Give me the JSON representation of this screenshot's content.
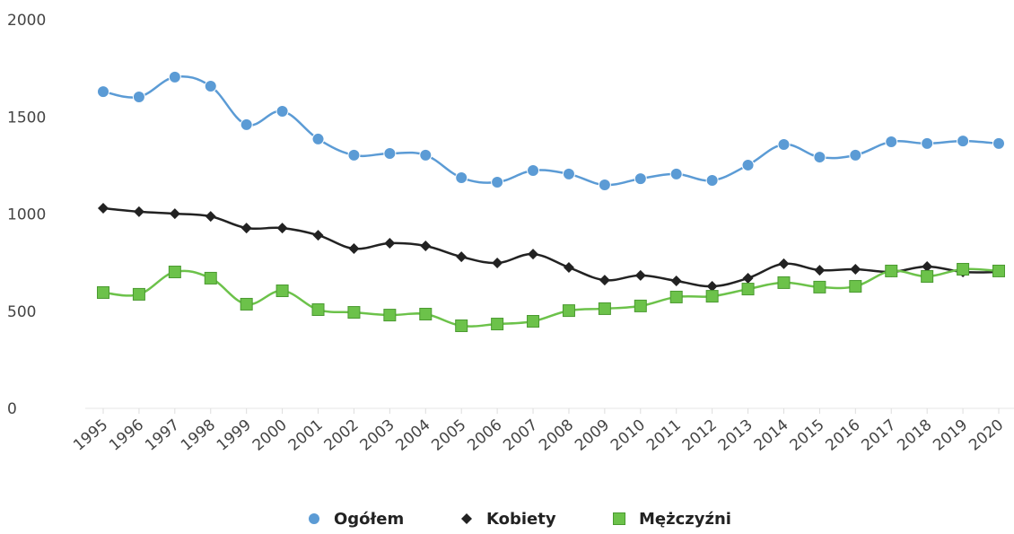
{
  "chart_data": {
    "type": "line",
    "categories": [
      "1995",
      "1996",
      "1997",
      "1998",
      "1999",
      "2000",
      "2001",
      "2002",
      "2003",
      "2004",
      "2005",
      "2006",
      "2007",
      "2008",
      "2009",
      "2010",
      "2011",
      "2012",
      "2013",
      "2014",
      "2015",
      "2016",
      "2017",
      "2018",
      "2019",
      "2020"
    ],
    "series": [
      {
        "name": "Ogółem",
        "color": "#5b9bd5",
        "marker": "circle",
        "values": [
          1630,
          1603,
          1705,
          1658,
          1460,
          1529,
          1386,
          1303,
          1312,
          1303,
          1187,
          1164,
          1224,
          1206,
          1150,
          1182,
          1206,
          1173,
          1252,
          1358,
          1293,
          1303,
          1372,
          1363,
          1376,
          1363
        ]
      },
      {
        "name": "Kobiety",
        "color": "#222222",
        "marker": "diamond",
        "values": [
          1030,
          1012,
          1002,
          988,
          928,
          928,
          891,
          822,
          850,
          836,
          780,
          748,
          794,
          725,
          660,
          684,
          656,
          628,
          670,
          744,
          711,
          716,
          702,
          730,
          702,
          702
        ]
      },
      {
        "name": "Mężczyźni",
        "color": "#6cc24a",
        "marker": "square",
        "values": [
          596,
          587,
          702,
          670,
          536,
          605,
          508,
          494,
          480,
          485,
          425,
          434,
          448,
          503,
          513,
          527,
          573,
          577,
          614,
          647,
          624,
          628,
          707,
          679,
          716,
          707
        ]
      }
    ],
    "ylim": [
      0,
      2000
    ],
    "yticks": [
      0,
      500,
      1000,
      1500,
      2000
    ],
    "grid": false,
    "legend": "bottom"
  }
}
